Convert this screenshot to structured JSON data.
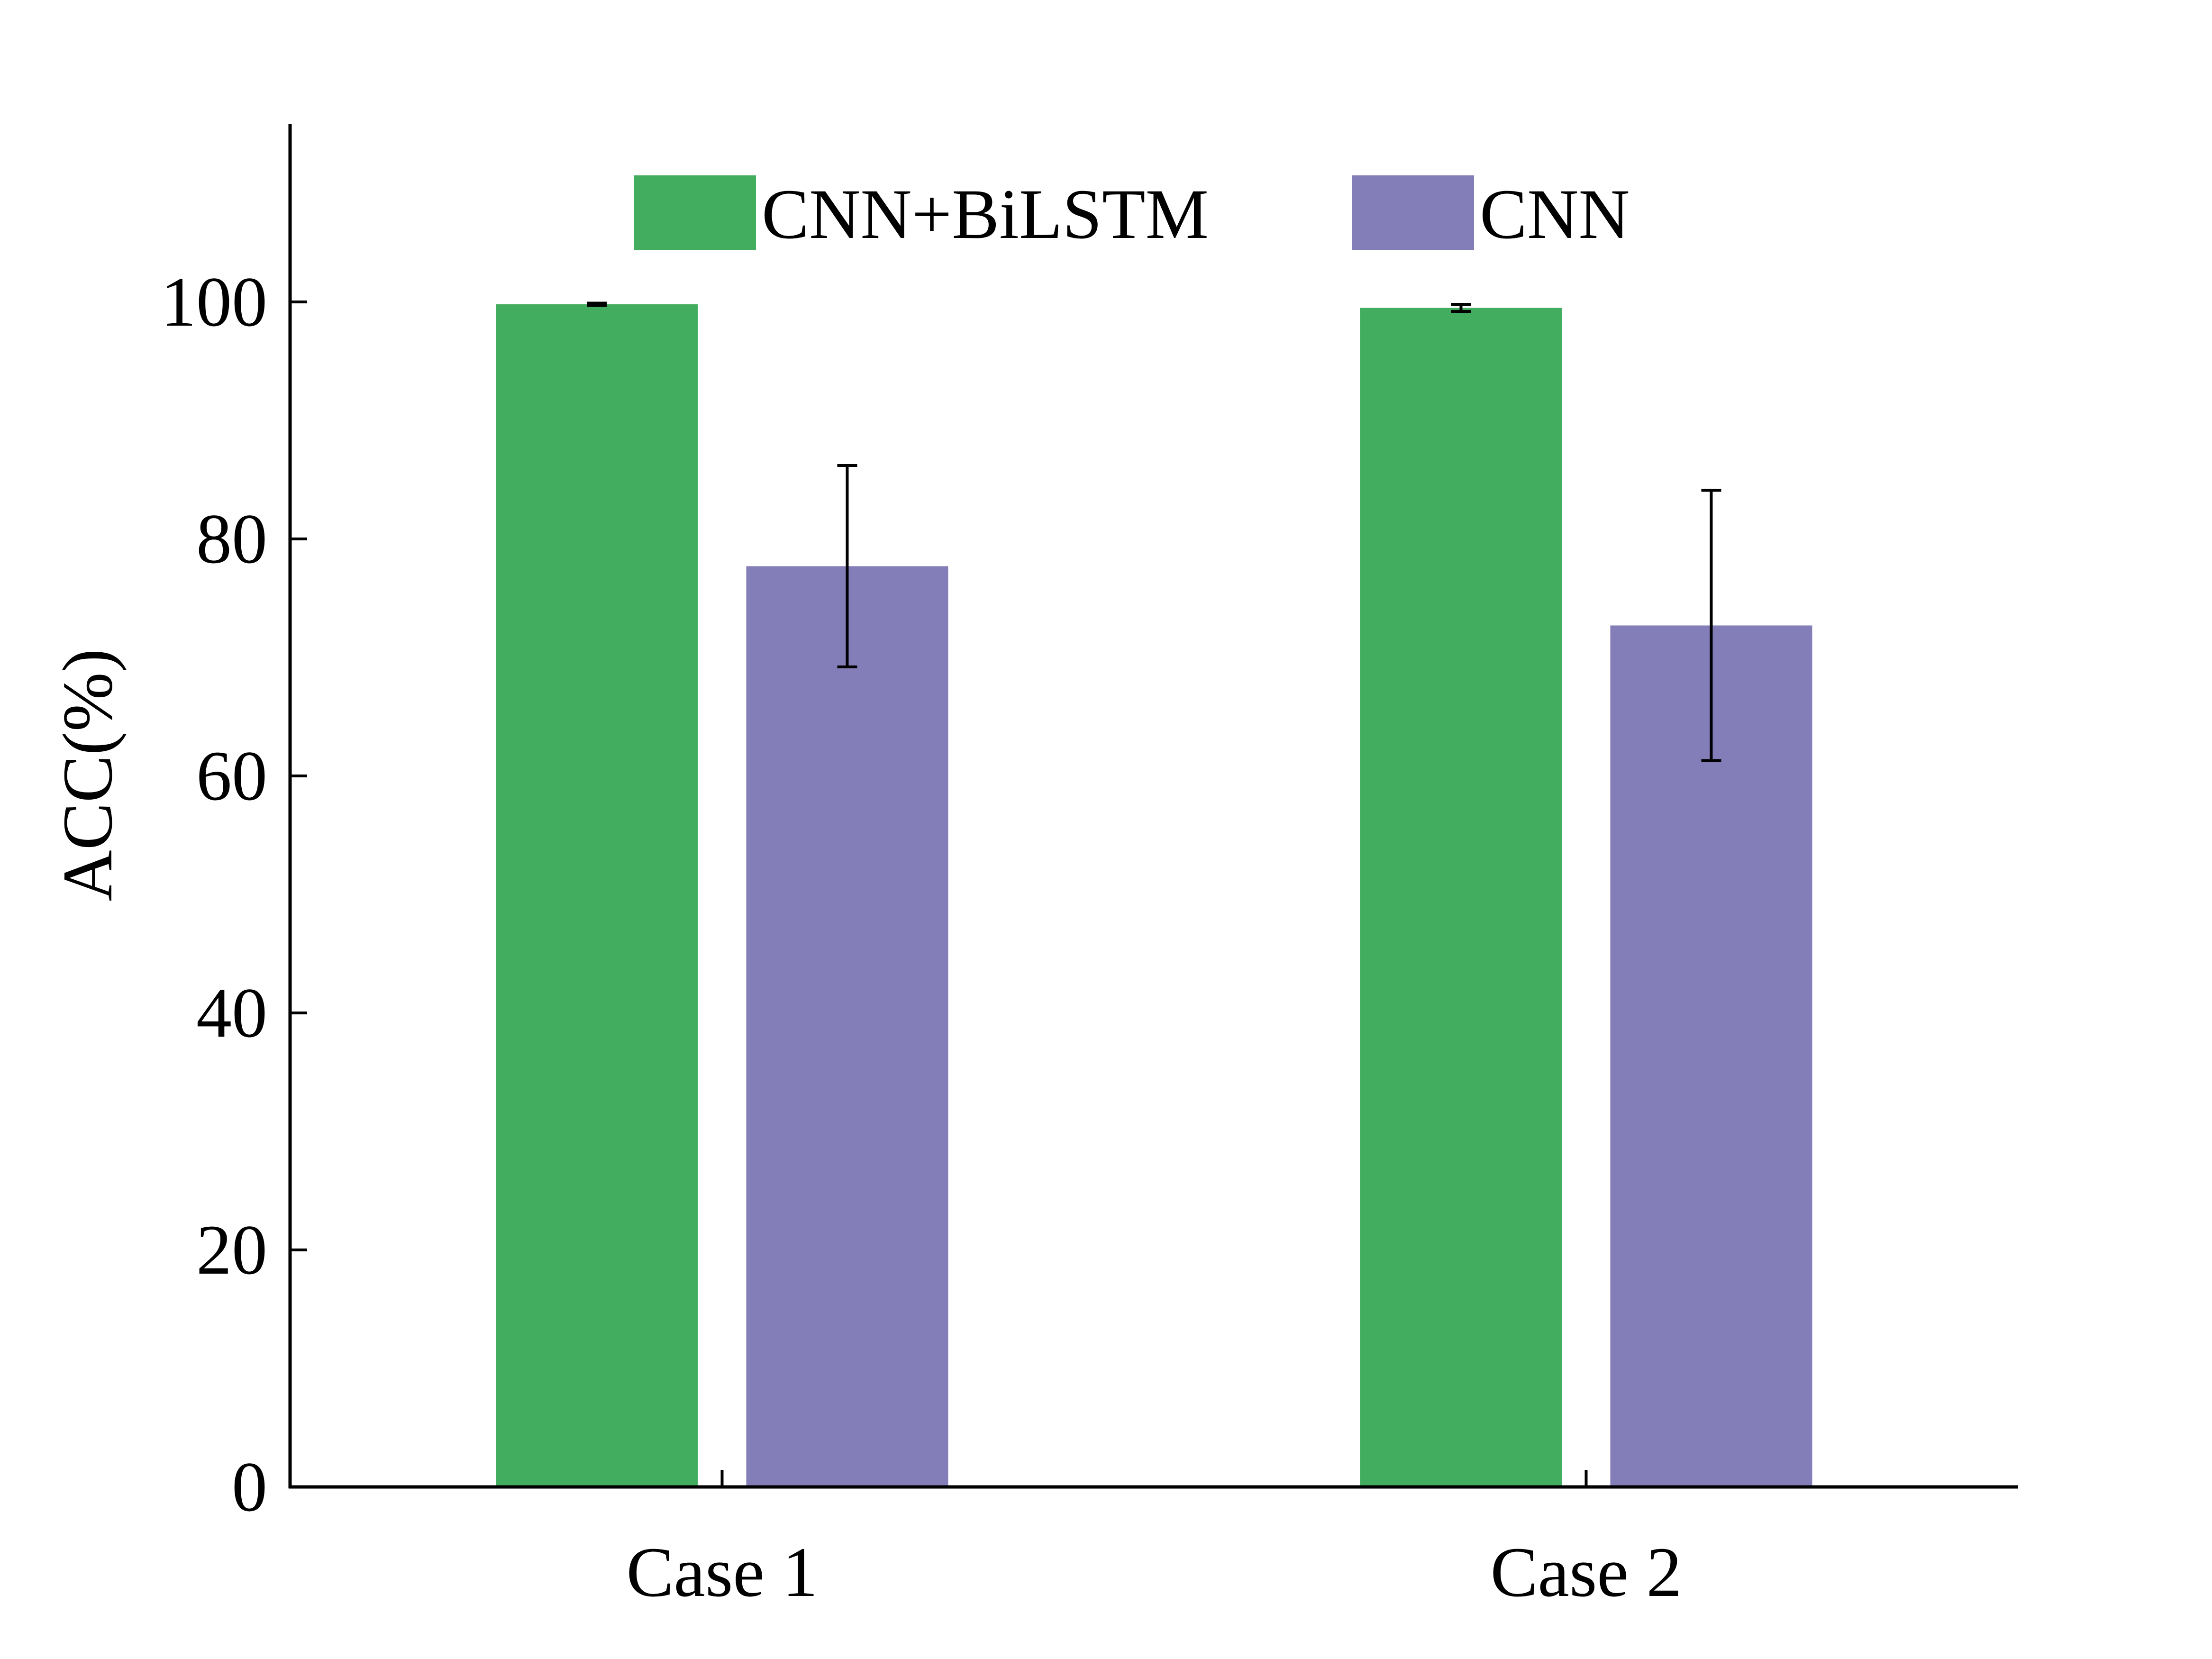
{
  "chart_data": {
    "type": "bar",
    "categories": [
      "Case 1",
      "Case 2"
    ],
    "series": [
      {
        "name": "CNN+BiLSTM",
        "color": "#43AD5F",
        "values": [
          99.8,
          99.5
        ],
        "errors": [
          0.1,
          0.3
        ]
      },
      {
        "name": "CNN",
        "color": "#837EB8",
        "values": [
          77.7,
          72.7
        ],
        "errors": [
          8.5,
          11.4
        ]
      }
    ],
    "title": "",
    "xlabel": "",
    "ylabel": "ACC(%)",
    "ylim": [
      0,
      115
    ],
    "yticks": [
      0,
      20,
      40,
      60,
      80,
      100
    ],
    "grid": false,
    "legend_position": "top-center"
  }
}
